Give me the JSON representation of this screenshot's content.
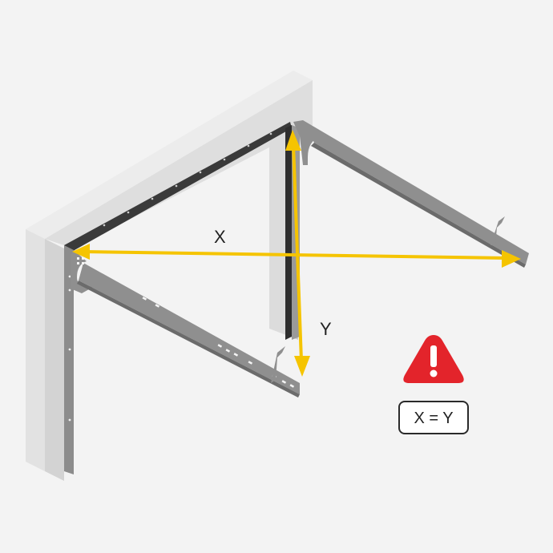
{
  "labels": {
    "x": "X",
    "y": "Y",
    "equation": "X = Y"
  },
  "icons": {
    "warning": "warning-triangle-icon"
  },
  "colors": {
    "background": "#f3f3f3",
    "wall": "#dcdcdc",
    "wall_side": "#c4c4c4",
    "wall_top": "#e6e6e6",
    "rail": "#8f8f8f",
    "rail_dark": "#5a5a5a",
    "measure_arrow": "#f5c400",
    "warning": "#e3242b"
  }
}
